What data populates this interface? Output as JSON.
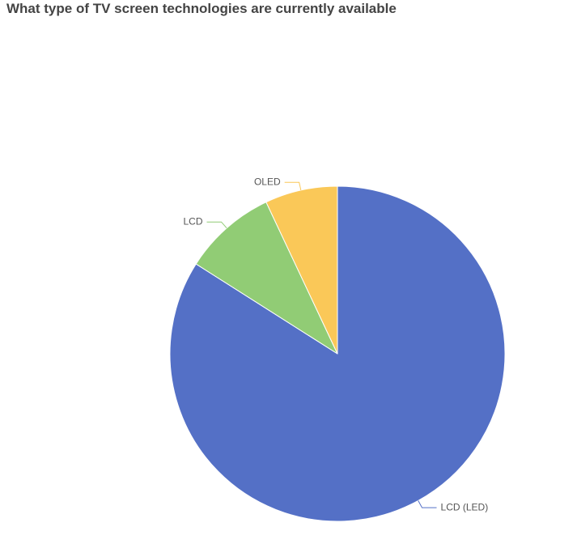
{
  "chart_data": {
    "type": "pie",
    "title": "What type of TV screen technologies are currently available",
    "start_angle_deg": 0,
    "direction": "clockwise",
    "slices": [
      {
        "label": "LCD (LED)",
        "value": 84,
        "color": "#5470c6"
      },
      {
        "label": "LCD",
        "value": 9,
        "color": "#91cc75"
      },
      {
        "label": "OLED",
        "value": 7,
        "color": "#fac858"
      }
    ]
  }
}
